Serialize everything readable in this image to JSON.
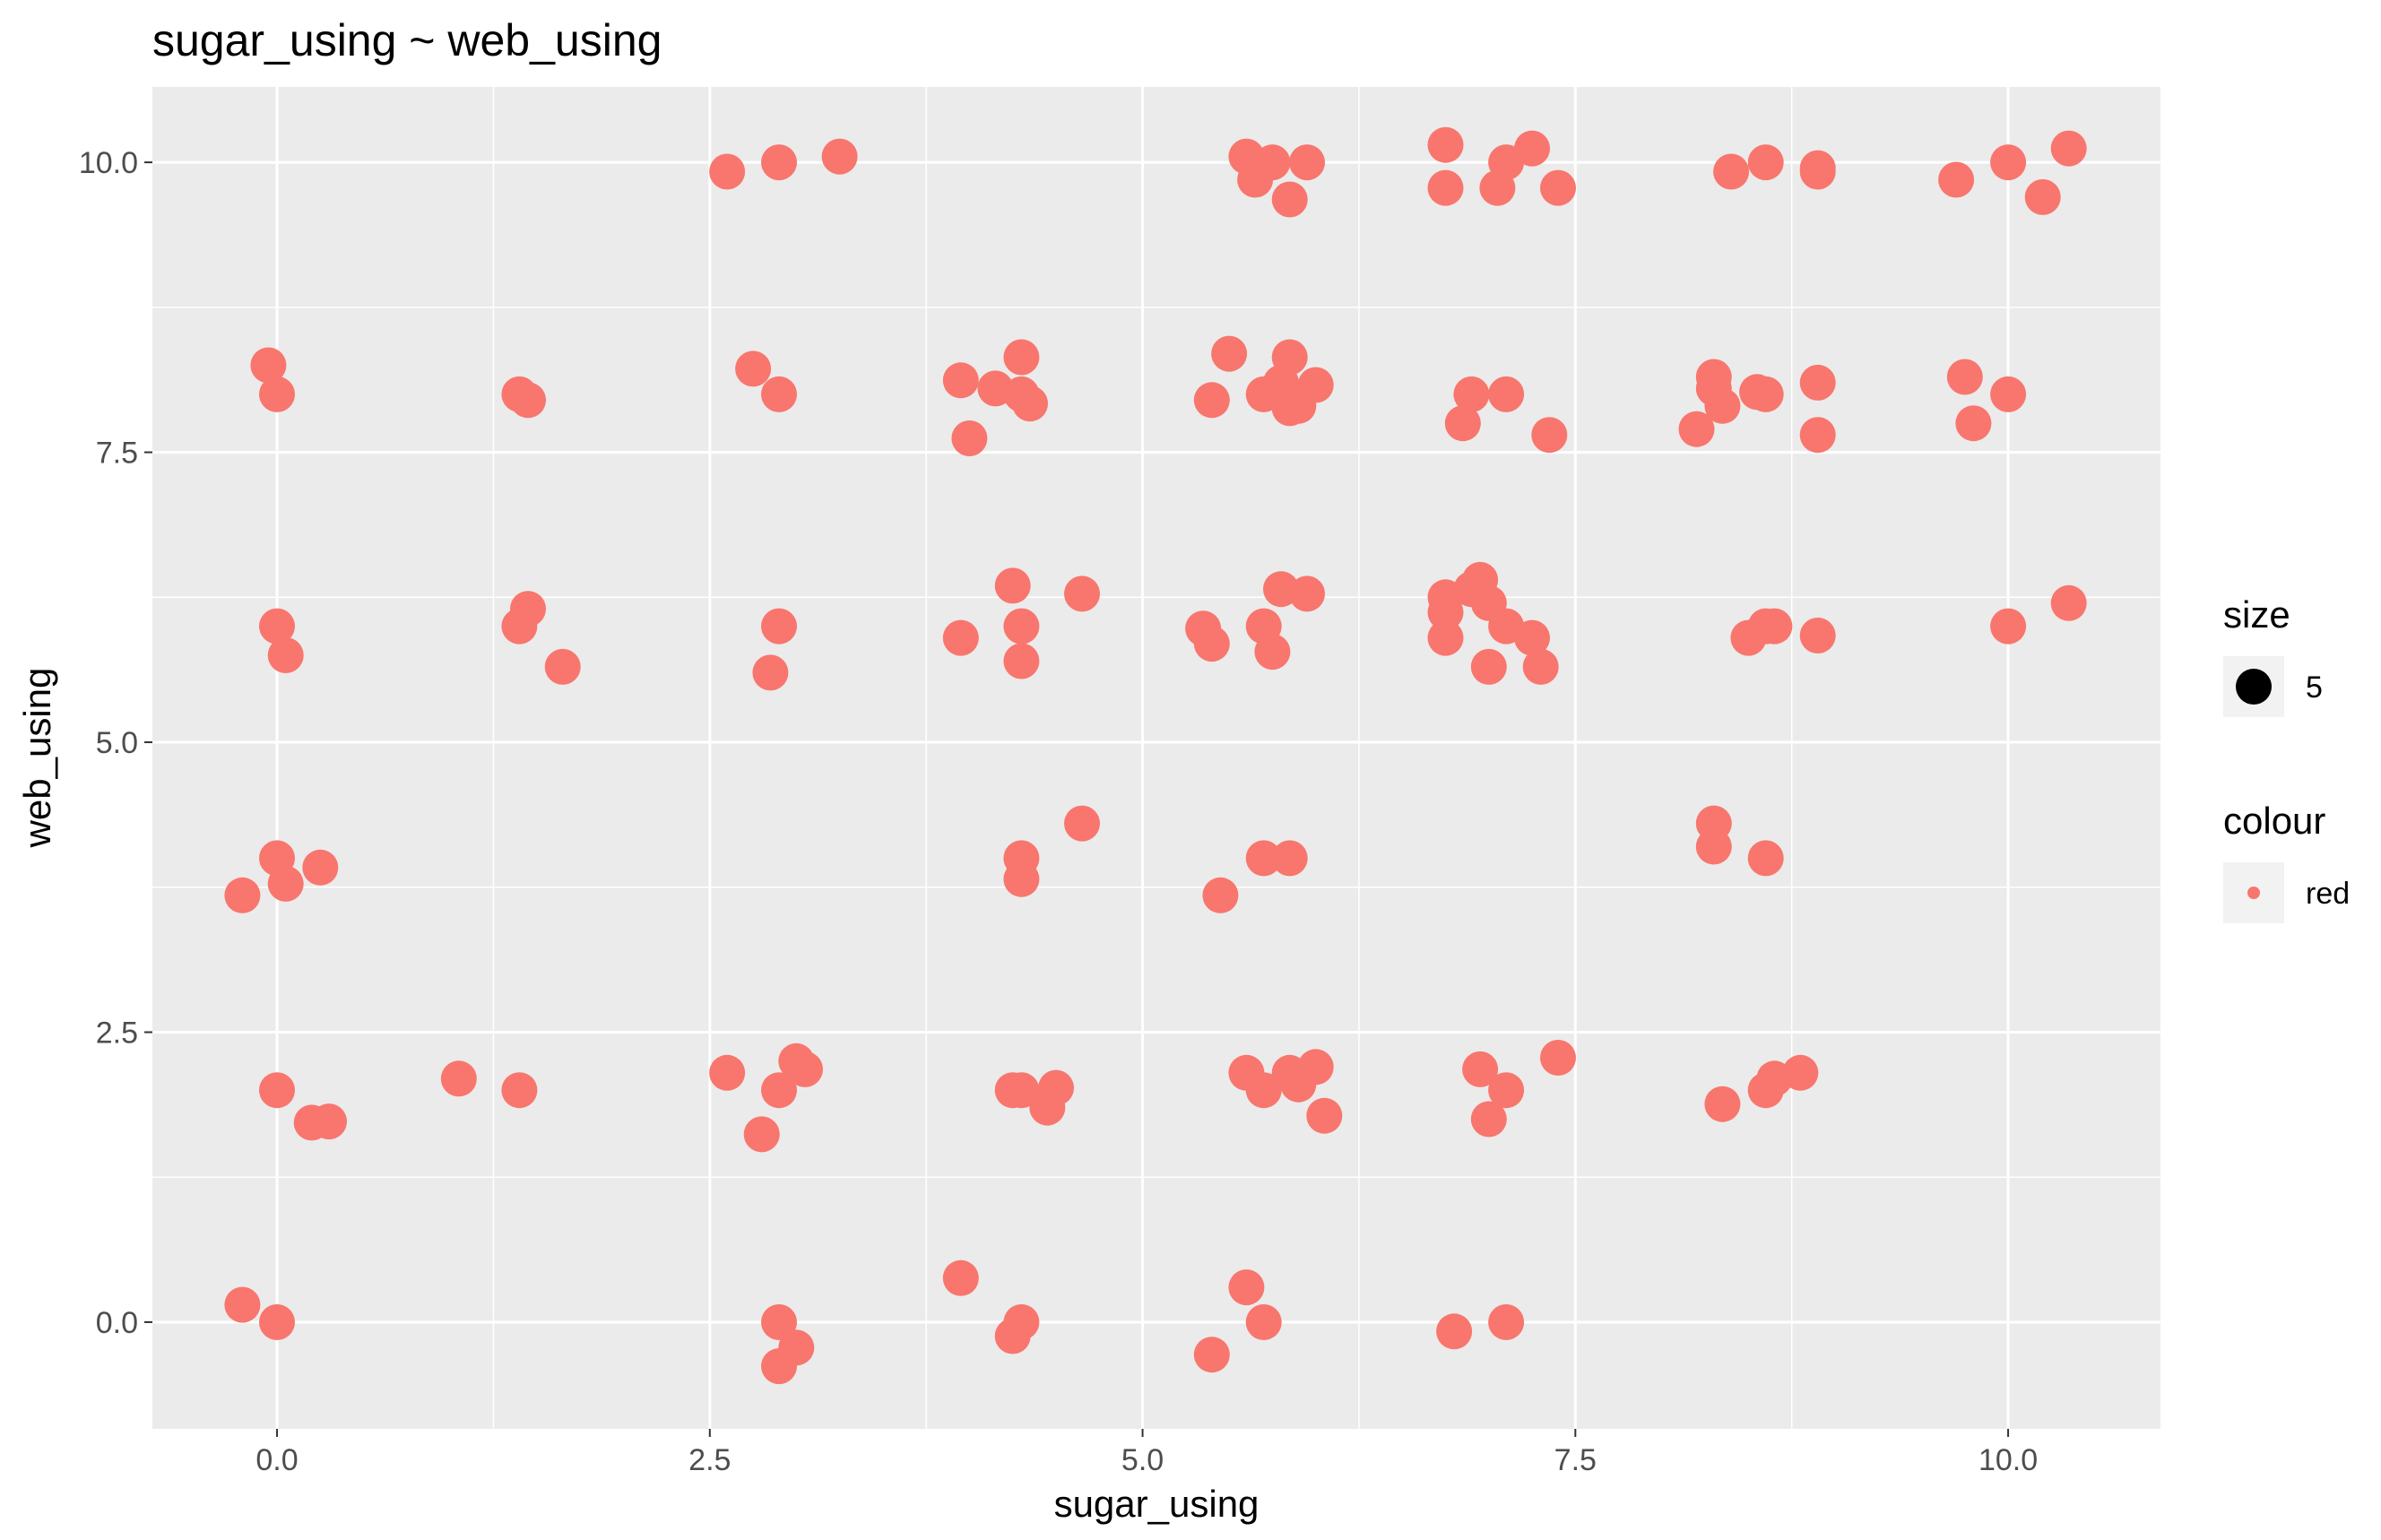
{
  "chart_data": {
    "type": "scatter",
    "title": "sugar_using ~ web_using",
    "xlabel": "sugar_using",
    "ylabel": "web_using",
    "xlim": [
      -0.72,
      10.88
    ],
    "ylim": [
      -0.92,
      10.65
    ],
    "xticks": [
      0.0,
      2.5,
      5.0,
      7.5,
      10.0
    ],
    "xtick_labels": [
      "0.0",
      "2.5",
      "5.0",
      "7.5",
      "10.0"
    ],
    "yticks": [
      0.0,
      2.5,
      5.0,
      7.5,
      10.0
    ],
    "ytick_labels": [
      "0.0",
      "2.5",
      "5.0",
      "7.5",
      "10.0"
    ],
    "grid": true,
    "point_color": "#F8766D",
    "panel_background": "#EBEBEB",
    "legend": {
      "placement": "right",
      "size": {
        "title": "size",
        "label": "5"
      },
      "colour": {
        "title": "colour",
        "label": "red"
      }
    },
    "points": [
      [
        2.6,
        9.92
      ],
      [
        2.9,
        10.0
      ],
      [
        3.25,
        10.05
      ],
      [
        5.6,
        10.05
      ],
      [
        5.65,
        9.85
      ],
      [
        5.75,
        10.0
      ],
      [
        5.85,
        9.68
      ],
      [
        5.95,
        10.0
      ],
      [
        6.75,
        10.15
      ],
      [
        6.75,
        9.78
      ],
      [
        7.05,
        9.78
      ],
      [
        7.1,
        10.0
      ],
      [
        7.25,
        10.12
      ],
      [
        7.4,
        9.78
      ],
      [
        8.4,
        9.92
      ],
      [
        8.6,
        10.0
      ],
      [
        8.9,
        9.92
      ],
      [
        8.9,
        9.95
      ],
      [
        9.7,
        9.85
      ],
      [
        10.0,
        10.0
      ],
      [
        10.2,
        9.7
      ],
      [
        10.35,
        10.12
      ],
      [
        -0.05,
        8.25
      ],
      [
        0.0,
        8.0
      ],
      [
        1.4,
        8.0
      ],
      [
        1.45,
        7.95
      ],
      [
        2.75,
        8.22
      ],
      [
        2.9,
        8.0
      ],
      [
        3.95,
        8.12
      ],
      [
        4.0,
        7.62
      ],
      [
        4.15,
        8.05
      ],
      [
        4.3,
        8.0
      ],
      [
        4.3,
        8.32
      ],
      [
        4.35,
        7.92
      ],
      [
        5.4,
        7.95
      ],
      [
        5.5,
        8.35
      ],
      [
        5.7,
        8.0
      ],
      [
        5.8,
        8.1
      ],
      [
        5.85,
        8.32
      ],
      [
        5.85,
        7.88
      ],
      [
        5.9,
        7.9
      ],
      [
        6.0,
        8.08
      ],
      [
        6.85,
        7.75
      ],
      [
        6.9,
        8.0
      ],
      [
        7.1,
        8.0
      ],
      [
        7.35,
        7.65
      ],
      [
        8.2,
        7.7
      ],
      [
        8.3,
        8.05
      ],
      [
        8.3,
        8.15
      ],
      [
        8.35,
        7.9
      ],
      [
        8.55,
        8.02
      ],
      [
        8.6,
        8.0
      ],
      [
        8.9,
        8.1
      ],
      [
        8.9,
        7.65
      ],
      [
        9.75,
        8.15
      ],
      [
        9.8,
        7.75
      ],
      [
        10.0,
        8.0
      ],
      [
        0.0,
        6.0
      ],
      [
        0.05,
        5.75
      ],
      [
        1.4,
        6.0
      ],
      [
        1.45,
        6.15
      ],
      [
        1.65,
        5.65
      ],
      [
        2.85,
        5.6
      ],
      [
        2.9,
        6.0
      ],
      [
        3.95,
        5.9
      ],
      [
        4.25,
        6.35
      ],
      [
        4.3,
        6.0
      ],
      [
        4.3,
        5.7
      ],
      [
        4.65,
        6.28
      ],
      [
        5.35,
        5.98
      ],
      [
        5.4,
        5.85
      ],
      [
        5.7,
        6.0
      ],
      [
        5.75,
        5.78
      ],
      [
        5.8,
        6.32
      ],
      [
        5.95,
        6.28
      ],
      [
        6.75,
        6.25
      ],
      [
        6.75,
        6.12
      ],
      [
        6.75,
        5.9
      ],
      [
        6.9,
        6.32
      ],
      [
        6.95,
        6.4
      ],
      [
        7.0,
        6.2
      ],
      [
        7.0,
        5.65
      ],
      [
        7.1,
        6.0
      ],
      [
        7.25,
        5.9
      ],
      [
        7.3,
        5.65
      ],
      [
        8.5,
        5.9
      ],
      [
        8.6,
        6.0
      ],
      [
        8.65,
        6.0
      ],
      [
        8.9,
        5.92
      ],
      [
        10.0,
        6.0
      ],
      [
        10.35,
        6.2
      ],
      [
        -0.2,
        3.68
      ],
      [
        0.0,
        4.0
      ],
      [
        0.05,
        3.78
      ],
      [
        0.25,
        3.92
      ],
      [
        4.3,
        4.0
      ],
      [
        4.3,
        3.82
      ],
      [
        4.65,
        4.3
      ],
      [
        5.45,
        3.68
      ],
      [
        5.7,
        4.0
      ],
      [
        5.85,
        4.0
      ],
      [
        8.3,
        4.3
      ],
      [
        8.3,
        4.1
      ],
      [
        8.6,
        4.0
      ],
      [
        0.0,
        2.0
      ],
      [
        0.2,
        1.72
      ],
      [
        0.3,
        1.73
      ],
      [
        1.05,
        2.1
      ],
      [
        1.4,
        2.0
      ],
      [
        2.6,
        2.15
      ],
      [
        2.8,
        1.62
      ],
      [
        2.9,
        2.0
      ],
      [
        3.0,
        2.25
      ],
      [
        3.05,
        2.18
      ],
      [
        4.25,
        2.0
      ],
      [
        4.3,
        2.0
      ],
      [
        4.45,
        1.85
      ],
      [
        4.5,
        2.02
      ],
      [
        5.6,
        2.15
      ],
      [
        5.7,
        2.0
      ],
      [
        5.85,
        2.15
      ],
      [
        5.9,
        2.05
      ],
      [
        6.0,
        2.2
      ],
      [
        6.05,
        1.78
      ],
      [
        6.95,
        2.18
      ],
      [
        7.0,
        1.75
      ],
      [
        7.1,
        2.0
      ],
      [
        7.4,
        2.28
      ],
      [
        8.35,
        1.88
      ],
      [
        8.6,
        2.0
      ],
      [
        8.65,
        2.1
      ],
      [
        8.8,
        2.15
      ],
      [
        -0.2,
        0.15
      ],
      [
        0.0,
        0.0
      ],
      [
        2.9,
        0.0
      ],
      [
        2.9,
        -0.38
      ],
      [
        3.0,
        -0.22
      ],
      [
        3.95,
        0.38
      ],
      [
        4.25,
        -0.12
      ],
      [
        4.3,
        0.0
      ],
      [
        5.4,
        -0.28
      ],
      [
        5.6,
        0.3
      ],
      [
        5.7,
        0.0
      ],
      [
        6.8,
        -0.08
      ],
      [
        7.1,
        0.0
      ]
    ]
  }
}
